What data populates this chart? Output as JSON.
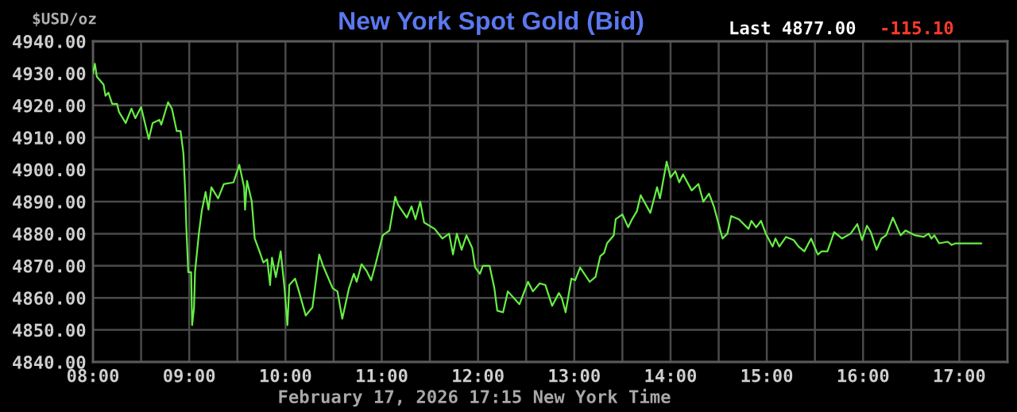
{
  "chart_data": {
    "type": "line",
    "title": "New York Spot Gold (Bid)",
    "ylabel": "$USD/oz",
    "annotations": [
      "Last 4877.00",
      "-115.10",
      "February 17, 2026 17:15 New York Time"
    ],
    "x": [
      8.0,
      8.02,
      8.04,
      8.11,
      8.13,
      8.16,
      8.2,
      8.25,
      8.27,
      8.34,
      8.4,
      8.44,
      8.5,
      8.58,
      8.62,
      8.69,
      8.71,
      8.78,
      8.82,
      8.87,
      8.91,
      8.94,
      8.96,
      8.97,
      8.99,
      9.02,
      9.03,
      9.05,
      9.06,
      9.1,
      9.13,
      9.17,
      9.2,
      9.23,
      9.3,
      9.36,
      9.46,
      9.52,
      9.57,
      9.58,
      9.6,
      9.65,
      9.68,
      9.73,
      9.77,
      9.81,
      9.84,
      9.86,
      9.9,
      9.95,
      9.99,
      10.02,
      10.04,
      10.1,
      10.14,
      10.21,
      10.28,
      10.31,
      10.35,
      10.39,
      10.49,
      10.54,
      10.59,
      10.66,
      10.71,
      10.74,
      10.79,
      10.84,
      10.89,
      10.94,
      11.01,
      11.08,
      11.14,
      11.17,
      11.26,
      11.31,
      11.35,
      11.4,
      11.44,
      11.55,
      11.63,
      11.7,
      11.74,
      11.78,
      11.83,
      11.88,
      11.94,
      11.97,
      12.02,
      12.05,
      12.12,
      12.17,
      12.2,
      12.26,
      12.31,
      12.43,
      12.52,
      12.57,
      12.64,
      12.7,
      12.77,
      12.84,
      12.87,
      12.91,
      12.97,
      13.01,
      13.06,
      13.16,
      13.22,
      13.27,
      13.31,
      13.34,
      13.41,
      13.43,
      13.5,
      13.56,
      13.6,
      13.65,
      13.69,
      13.79,
      13.86,
      13.89,
      13.96,
      14.0,
      14.05,
      14.09,
      14.13,
      14.22,
      14.29,
      14.34,
      14.4,
      14.45,
      14.54,
      14.59,
      14.63,
      14.71,
      14.81,
      14.84,
      14.89,
      14.94,
      14.99,
      15.06,
      15.09,
      15.13,
      15.2,
      15.28,
      15.33,
      15.39,
      15.46,
      15.53,
      15.57,
      15.63,
      15.7,
      15.78,
      15.87,
      15.94,
      15.99,
      16.04,
      16.08,
      16.14,
      16.19,
      16.24,
      16.31,
      16.39,
      16.44,
      16.54,
      16.63,
      16.68,
      16.71,
      16.74,
      16.79,
      16.88,
      16.92,
      16.96,
      17.23
    ],
    "series": [
      {
        "color": "#66ee44",
        "values": [
          4930,
          4933,
          4929,
          4926.5,
          4923,
          4924,
          4920.5,
          4920.5,
          4918,
          4914.5,
          4919,
          4916,
          4919.5,
          4909.5,
          4914.5,
          4915.5,
          4914,
          4921,
          4919,
          4912,
          4912,
          4905,
          4892,
          4882,
          4868,
          4868,
          4851.5,
          4857,
          4868,
          4880,
          4887,
          4893,
          4887.5,
          4894.5,
          4891,
          4895.5,
          4896,
          4901.5,
          4894.5,
          4887.5,
          4896.5,
          4890,
          4878.5,
          4874.5,
          4871,
          4872,
          4864,
          4872.5,
          4866.5,
          4874.5,
          4863,
          4851.5,
          4864,
          4866,
          4862,
          4854.5,
          4857,
          4864,
          4873.5,
          4870,
          4863,
          4862,
          4853.5,
          4863,
          4867.5,
          4865,
          4870.5,
          4868.5,
          4865.5,
          4871,
          4879.5,
          4881,
          4891.5,
          4889,
          4885,
          4888.5,
          4884.5,
          4890,
          4883.5,
          4881.5,
          4878.5,
          4880,
          4873.5,
          4880,
          4875,
          4879.5,
          4875.5,
          4869.5,
          4867.5,
          4870,
          4870,
          4863,
          4856,
          4855.5,
          4862,
          4858,
          4865,
          4862,
          4864.5,
          4864,
          4857.5,
          4861.5,
          4860,
          4855.5,
          4866,
          4865.5,
          4869.5,
          4865,
          4866.5,
          4873,
          4874,
          4877,
          4879.5,
          4884.5,
          4886,
          4882,
          4884.5,
          4887,
          4892,
          4886.5,
          4894.5,
          4891,
          4902.5,
          4897.5,
          4899.5,
          4896,
          4898.5,
          4893.5,
          4895.5,
          4890,
          4892.5,
          4888.5,
          4878.5,
          4880,
          4885.5,
          4884.5,
          4881.5,
          4884,
          4882,
          4884,
          4880,
          4876,
          4878.5,
          4876,
          4879,
          4878,
          4876,
          4874.5,
          4878.5,
          4873.5,
          4874.5,
          4874.5,
          4880.5,
          4878.5,
          4880,
          4883,
          4878,
          4882.5,
          4880.5,
          4875,
          4878.5,
          4879.5,
          4885,
          4879.5,
          4881,
          4879.5,
          4879,
          4880,
          4878.5,
          4879.5,
          4877,
          4877.5,
          4876.5,
          4877,
          4877
        ]
      }
    ],
    "xlim": [
      8,
      17.5
    ],
    "ylim": [
      4840,
      4940
    ],
    "xticks": [
      {
        "value": 8,
        "label": "08:00"
      },
      {
        "value": 8.5,
        "label": null
      },
      {
        "value": 9,
        "label": "09:00"
      },
      {
        "value": 9.5,
        "label": null
      },
      {
        "value": 10,
        "label": "10:00"
      },
      {
        "value": 10.5,
        "label": null
      },
      {
        "value": 11,
        "label": "11:00"
      },
      {
        "value": 11.5,
        "label": null
      },
      {
        "value": 12,
        "label": "12:00"
      },
      {
        "value": 12.5,
        "label": null
      },
      {
        "value": 13,
        "label": "13:00"
      },
      {
        "value": 13.5,
        "label": null
      },
      {
        "value": 14,
        "label": "14:00"
      },
      {
        "value": 14.5,
        "label": null
      },
      {
        "value": 15,
        "label": "15:00"
      },
      {
        "value": 15.5,
        "label": null
      },
      {
        "value": 16,
        "label": "16:00"
      },
      {
        "value": 16.5,
        "label": null
      },
      {
        "value": 17,
        "label": "17:00"
      }
    ],
    "yticks": [
      {
        "value": 4840,
        "label": "4840.00"
      },
      {
        "value": 4850,
        "label": "4850.00"
      },
      {
        "value": 4860,
        "label": "4860.00"
      },
      {
        "value": 4870,
        "label": "4870.00"
      },
      {
        "value": 4880,
        "label": "4880.00"
      },
      {
        "value": 4890,
        "label": "4890.00"
      },
      {
        "value": 4900,
        "label": "4900.00"
      },
      {
        "value": 4910,
        "label": "4910.00"
      },
      {
        "value": 4920,
        "label": "4920.00"
      },
      {
        "value": 4930,
        "label": "4930.00"
      },
      {
        "value": 4940,
        "label": "4940.00"
      }
    ],
    "grid": true
  }
}
